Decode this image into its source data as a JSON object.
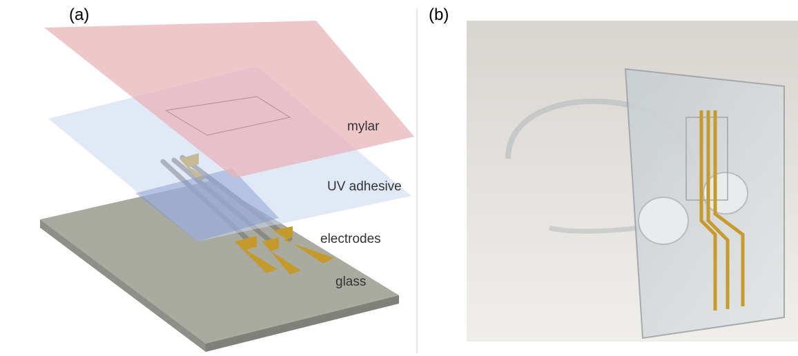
{
  "panels": {
    "a": {
      "label": "(a)",
      "layers": {
        "mylar": "mylar",
        "uv_adhesive": "UV adhesive",
        "electrodes": "electrodes",
        "glass": "glass"
      }
    },
    "b": {
      "label": "(b)"
    }
  },
  "colors": {
    "mylar": "#e8b4ba",
    "uv_adhesive": "#c9d6ee",
    "electrode_gold": "#c49a2c",
    "glass_top": "#a9aaa0",
    "glass_edge": "#7f8079",
    "photo_bg": "#e7e5e2"
  }
}
